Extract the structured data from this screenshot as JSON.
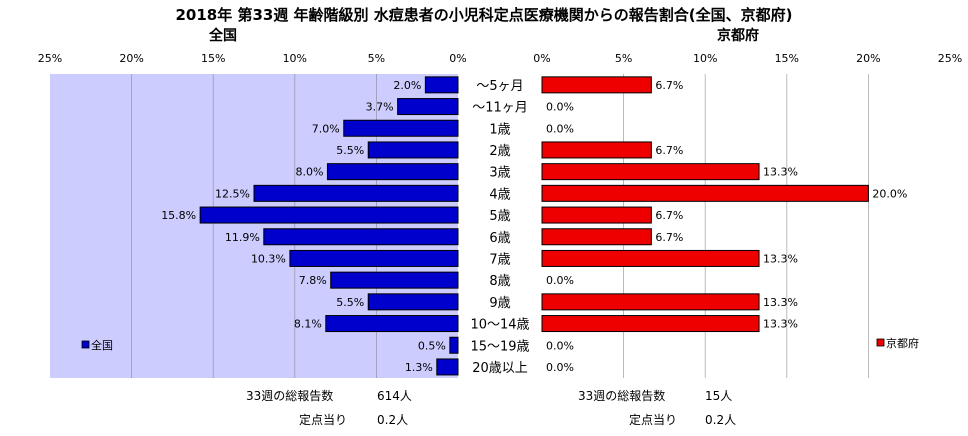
{
  "title": "2018年 第33週 年齢階級別 水痘患者の小児科定点医療機関からの報告割合(全国、京都府)",
  "chart_data": [
    {
      "type": "bar",
      "orientation": "horizontal",
      "direction": "right-to-left",
      "title": "全国",
      "categories": [
        "～5ヶ月",
        "～11ヶ月",
        "1歳",
        "2歳",
        "3歳",
        "4歳",
        "5歳",
        "6歳",
        "7歳",
        "8歳",
        "9歳",
        "10～14歳",
        "15～19歳",
        "20歳以上"
      ],
      "series": [
        {
          "name": "全国",
          "color": "#0000cc",
          "values": [
            2.0,
            3.7,
            7.0,
            5.5,
            8.0,
            12.5,
            15.8,
            11.9,
            10.3,
            7.8,
            5.5,
            8.1,
            0.5,
            1.3
          ],
          "labels": [
            "2.0%",
            "3.7%",
            "7.0%",
            "5.5%",
            "8.0%",
            "12.5%",
            "15.8%",
            "11.9%",
            "10.3%",
            "7.8%",
            "5.5%",
            "8.1%",
            "0.5%",
            "1.3%"
          ]
        }
      ],
      "xlim": [
        0,
        25
      ],
      "xticks": [
        "25%",
        "20%",
        "15%",
        "10%",
        "5%",
        "0%"
      ],
      "grid": true,
      "plot_background": "#ccccff",
      "legend": "bottom-left"
    },
    {
      "type": "bar",
      "orientation": "horizontal",
      "direction": "left-to-right",
      "title": "京都府",
      "categories": [
        "～5ヶ月",
        "～11ヶ月",
        "1歳",
        "2歳",
        "3歳",
        "4歳",
        "5歳",
        "6歳",
        "7歳",
        "8歳",
        "9歳",
        "10～14歳",
        "15～19歳",
        "20歳以上"
      ],
      "series": [
        {
          "name": "京都府",
          "color": "#ee0000",
          "values": [
            6.7,
            0.0,
            0.0,
            6.7,
            13.3,
            20.0,
            6.7,
            6.7,
            13.3,
            0.0,
            13.3,
            13.3,
            0.0,
            0.0
          ],
          "labels": [
            "6.7%",
            "0.0%",
            "0.0%",
            "6.7%",
            "13.3%",
            "20.0%",
            "6.7%",
            "6.7%",
            "13.3%",
            "0.0%",
            "13.3%",
            "13.3%",
            "0.0%",
            "0.0%"
          ]
        }
      ],
      "xlim": [
        0,
        25
      ],
      "xticks": [
        "0%",
        "5%",
        "10%",
        "15%",
        "20%",
        "25%"
      ],
      "grid": true,
      "plot_background": "#ffffff",
      "legend": "bottom-right"
    }
  ],
  "footer": {
    "national": {
      "total_label": "33週の総報告数",
      "total_value": "614人",
      "per_label": "定点当り",
      "per_value": "0.2人"
    },
    "kyoto": {
      "total_label": "33週の総報告数",
      "total_value": "15人",
      "per_label": "定点当り",
      "per_value": "0.2人"
    }
  }
}
